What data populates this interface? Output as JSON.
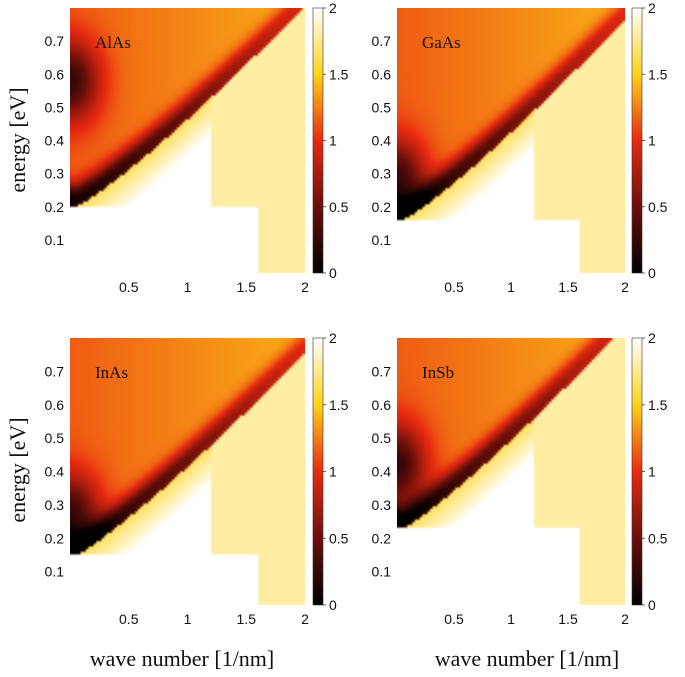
{
  "chart_data": {
    "type": "heatmap",
    "ylabel": "energy [eV]",
    "xlabel": "wave number [1/nm]",
    "colormap": {
      "stops": [
        {
          "value": 0,
          "color": "#000000"
        },
        {
          "value": 0.5,
          "color": "#6a0f0a"
        },
        {
          "value": 1,
          "color": "#e82a10"
        },
        {
          "value": 1.5,
          "color": "#ffd21a"
        },
        {
          "value": 2,
          "color": "#ffffff"
        }
      ],
      "range": [
        0,
        2
      ],
      "ticks": [
        "0",
        "0.5",
        "1",
        "1.5",
        "2"
      ]
    },
    "xlim": [
      0,
      2
    ],
    "ylim": [
      0,
      0.8
    ],
    "xticks": [
      "0.5",
      "1",
      "1.5",
      "2"
    ],
    "yticks": [
      "0.1",
      "0.2",
      "0.3",
      "0.4",
      "0.5",
      "0.6",
      "0.7"
    ],
    "panels": [
      {
        "label": "AlAs",
        "gap_energy": 0.58,
        "band_start": 0.22,
        "notch_k": 0.7
      },
      {
        "label": "GaAs",
        "gap_energy": 0.28,
        "band_start": 0.18,
        "notch_k": 0.3
      },
      {
        "label": "InAs",
        "gap_energy": 0.27,
        "band_start": 0.17,
        "notch_k": 0.15
      },
      {
        "label": "InSb",
        "gap_energy": 0.42,
        "band_start": 0.25,
        "notch_k": 0.1
      }
    ]
  }
}
